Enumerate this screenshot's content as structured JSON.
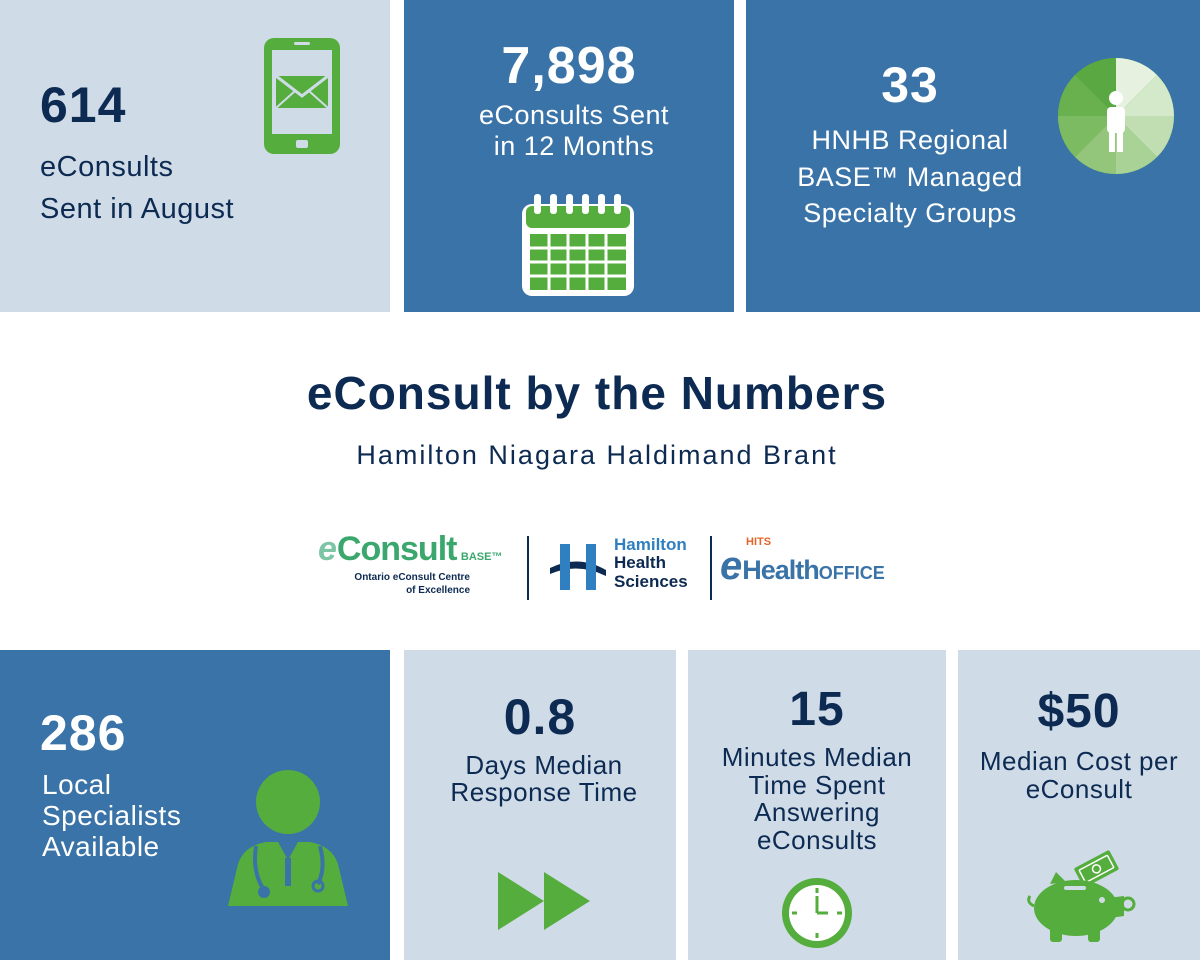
{
  "colors": {
    "navy": "#0d2a52",
    "blue": "#3a73a7",
    "light": "#cfdce7",
    "green": "#55ad3d",
    "white": "#ffffff"
  },
  "top": {
    "tile1": {
      "number": "614",
      "line1": "eConsults",
      "line2": "Sent in August",
      "icon": "tablet-envelope-icon"
    },
    "tile2": {
      "number": "7,898",
      "line1": "eConsults Sent",
      "line2": "in 12 Months",
      "icon": "calendar-icon"
    },
    "tile3": {
      "number": "33",
      "line1": "HNHB Regional",
      "line2": "BASE™ Managed",
      "line3": "Specialty Groups",
      "icon": "person-pie-icon"
    }
  },
  "center": {
    "title": "eConsult by the Numbers",
    "subtitle": "Hamilton Niagara Haldimand Brant",
    "logos": {
      "econsult": {
        "e": "e",
        "name": "Consult",
        "base": "BASE™",
        "line1": "Ontario eConsult Centre",
        "line2": "of Excellence"
      },
      "hhs": {
        "line1": "Hamilton",
        "line2": "Health",
        "line3": "Sciences"
      },
      "ehealth": {
        "hits": "HITS",
        "e": "e",
        "health": "Health",
        "office": "OFFICE"
      }
    }
  },
  "bottom": {
    "tile1": {
      "number": "286",
      "line1": "Local",
      "line2": "Specialists",
      "line3": "Available",
      "icon": "doctor-icon"
    },
    "tile2": {
      "number": "0.8",
      "line1": "Days Median",
      "line2": "Response Time",
      "icon": "fast-forward-icon"
    },
    "tile3": {
      "number": "15",
      "line1": "Minutes Median",
      "line2": "Time Spent",
      "line3": "Answering",
      "line4": "eConsults",
      "icon": "clock-icon"
    },
    "tile4": {
      "number": "$50",
      "line1": "Median Cost per",
      "line2": "eConsult",
      "icon": "piggy-bank-icon"
    }
  }
}
